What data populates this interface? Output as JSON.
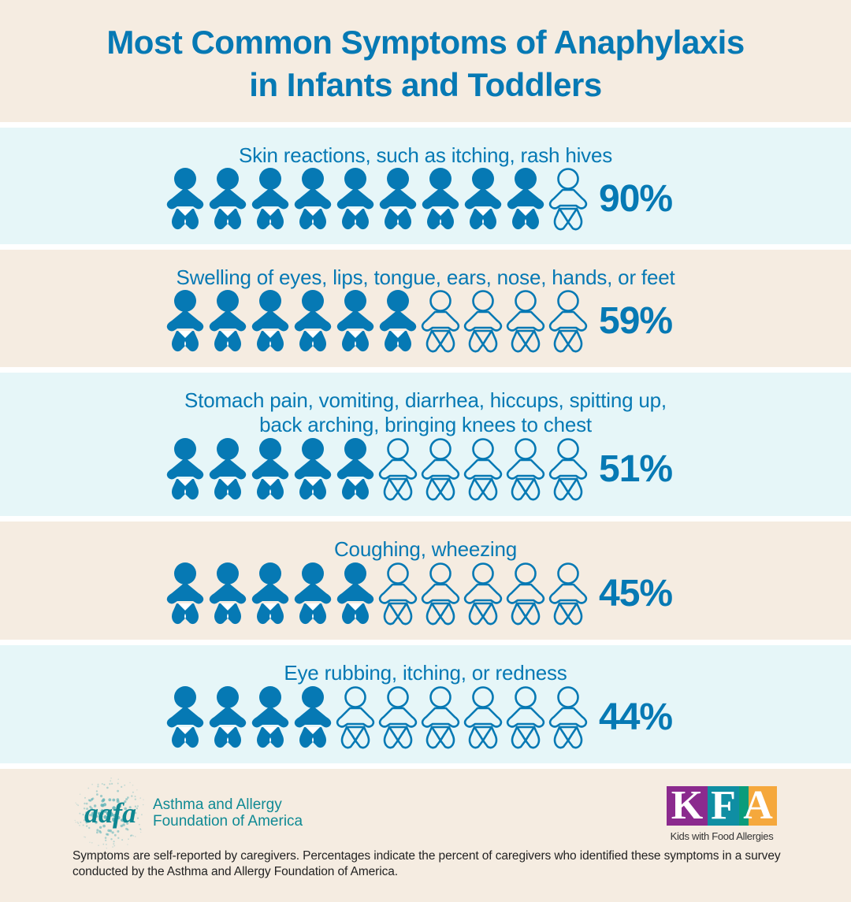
{
  "title_line1": "Most Common Symptoms of Anaphylaxis",
  "title_line2": "in Infants and Toddlers",
  "colors": {
    "primary_blue": "#0679b4",
    "band_cyan": "#e6f6f8",
    "band_beige": "#f5ece1",
    "aafa_teal": "#108a94",
    "kfa_purple": "#8b2a8e",
    "kfa_teal": "#0f8ea3",
    "kfa_green": "#0a9c7b",
    "kfa_orange": "#f5a83c"
  },
  "rows": [
    {
      "label": "Skin reactions, such as itching, rash hives",
      "label2": "",
      "percent": "90%",
      "filled": 9,
      "total": 10
    },
    {
      "label": "Swelling of eyes, lips, tongue, ears, nose, hands, or feet",
      "label2": "",
      "percent": "59%",
      "filled": 6,
      "total": 10
    },
    {
      "label": "Stomach pain, vomiting, diarrhea, hiccups, spitting up,",
      "label2": "back arching, bringing knees to chest",
      "percent": "51%",
      "filled": 5,
      "total": 10
    },
    {
      "label": "Coughing, wheezing",
      "label2": "",
      "percent": "45%",
      "filled": 5,
      "total": 10
    },
    {
      "label": "Eye rubbing, itching, or redness",
      "label2": "",
      "percent": "44%",
      "filled": 4,
      "total": 10
    }
  ],
  "footer": {
    "aafa_mark": "aafa",
    "aafa_line1": "Asthma and Allergy",
    "aafa_line2": "Foundation of America",
    "kfa_letters": [
      "K",
      "F",
      "A"
    ],
    "kfa_tagline": "Kids with Food Allergies",
    "note": "Symptoms are self-reported by caregivers. Percentages indicate the percent of caregivers who identified these symptoms in a survey conducted by the Asthma and Allergy Foundation of America."
  },
  "chart_data": {
    "type": "bar",
    "title": "Most Common Symptoms of Anaphylaxis in Infants and Toddlers",
    "categories": [
      "Skin reactions, such as itching, rash hives",
      "Swelling of eyes, lips, tongue, ears, nose, hands, or feet",
      "Stomach pain, vomiting, diarrhea, hiccups, spitting up, back arching, bringing knees to chest",
      "Coughing, wheezing",
      "Eye rubbing, itching, or redness"
    ],
    "values": [
      90,
      59,
      51,
      45,
      44
    ],
    "unit": "%",
    "representation": "pictogram (10 baby icons per row, filled icons ≈ percentage/10)",
    "filled_icons": [
      9,
      6,
      5,
      5,
      4
    ],
    "xlabel": "",
    "ylabel": "Percent of caregivers",
    "ylim": [
      0,
      100
    ]
  }
}
